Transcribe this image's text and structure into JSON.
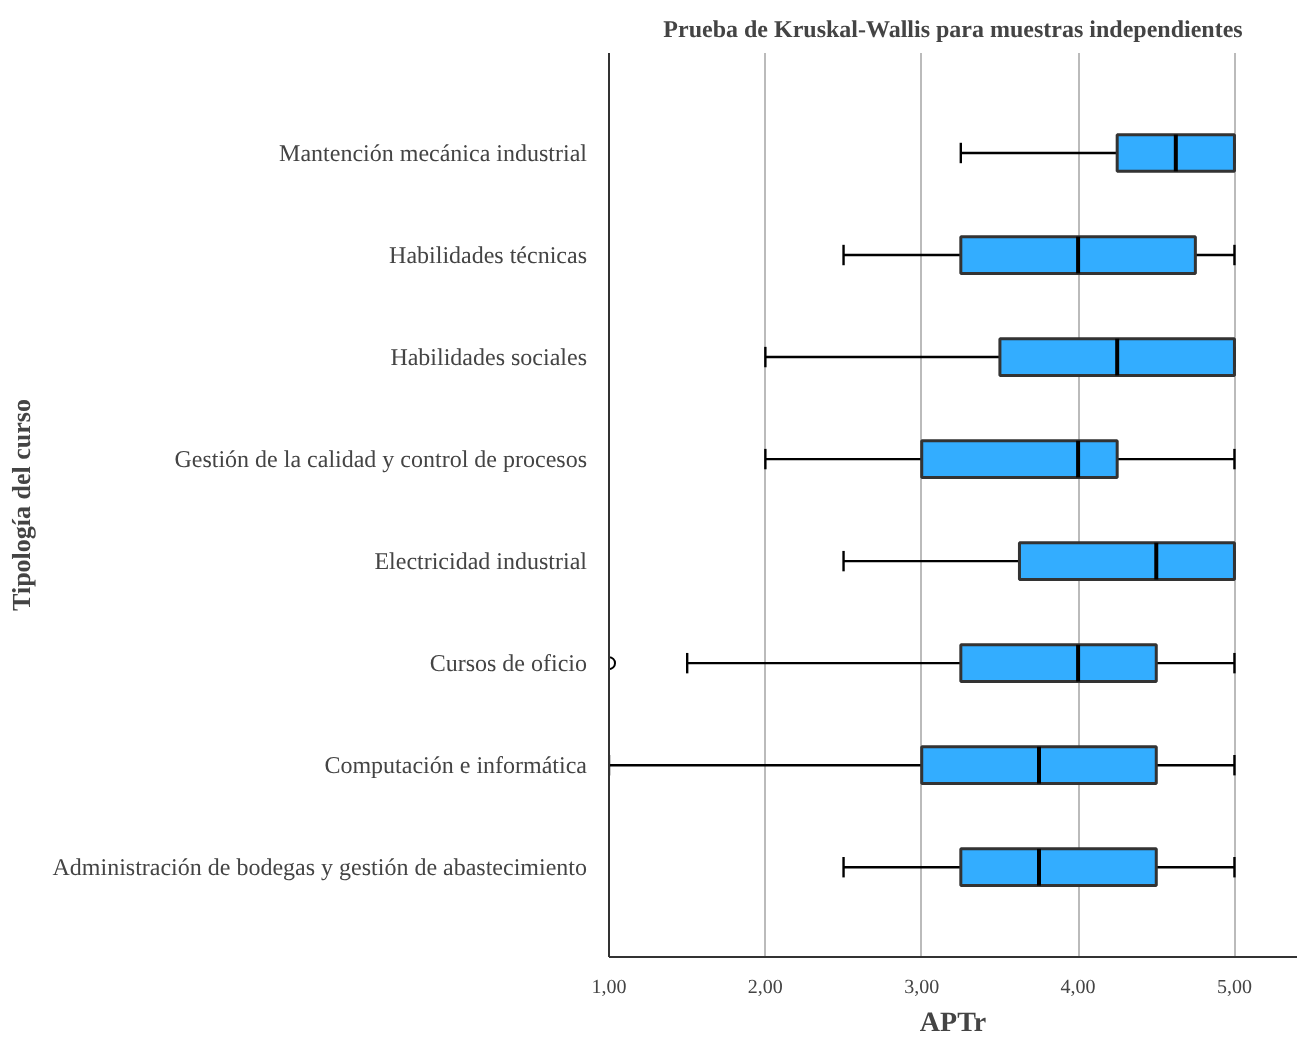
{
  "chart_data": {
    "type": "box",
    "orientation": "horizontal",
    "title": "Prueba de Kruskal-Wallis para muestras independientes",
    "xlabel": "APTr",
    "ylabel": "Tipología del curso",
    "categories": [
      "Mantención mecánica industrial",
      "Habilidades técnicas",
      "Habilidades sociales",
      "Gestión de la calidad y control de procesos",
      "Electricidad industrial",
      "Cursos de oficio",
      "Computación e informática",
      "Administración de bodegas y gestión de abastecimiento"
    ],
    "color": "#33adff",
    "boxes": [
      {
        "low": 3.25,
        "q1": 4.25,
        "median": 4.625,
        "q3": 5,
        "high": 5
      },
      {
        "low": 2.5,
        "q1": 3.25,
        "median": 4,
        "q3": 4.75,
        "high": 5
      },
      {
        "low": 2,
        "q1": 3.5,
        "median": 4.25,
        "q3": 5,
        "high": 5
      },
      {
        "low": 2,
        "q1": 3,
        "median": 4,
        "q3": 4.25,
        "high": 5
      },
      {
        "low": 2.5,
        "q1": 3.625,
        "median": 4.5,
        "q3": 5,
        "high": 5
      },
      {
        "low": 1.5,
        "q1": 3.25,
        "median": 4,
        "q3": 4.5,
        "high": 5,
        "outliers": [
          1
        ]
      },
      {
        "low": 1,
        "q1": 3,
        "median": 3.75,
        "q3": 4.5,
        "high": 5
      },
      {
        "low": 2.5,
        "q1": 3.25,
        "median": 3.75,
        "q3": 4.5,
        "high": 5
      }
    ],
    "xlim": [
      1,
      5.4
    ],
    "xticks": [
      {
        "value": 1,
        "label": "1,00"
      },
      {
        "value": 2,
        "label": "2,00"
      },
      {
        "value": 3,
        "label": "3,00"
      },
      {
        "value": 4,
        "label": "4,00"
      },
      {
        "value": 5,
        "label": "5,00"
      }
    ],
    "grid": "x"
  }
}
